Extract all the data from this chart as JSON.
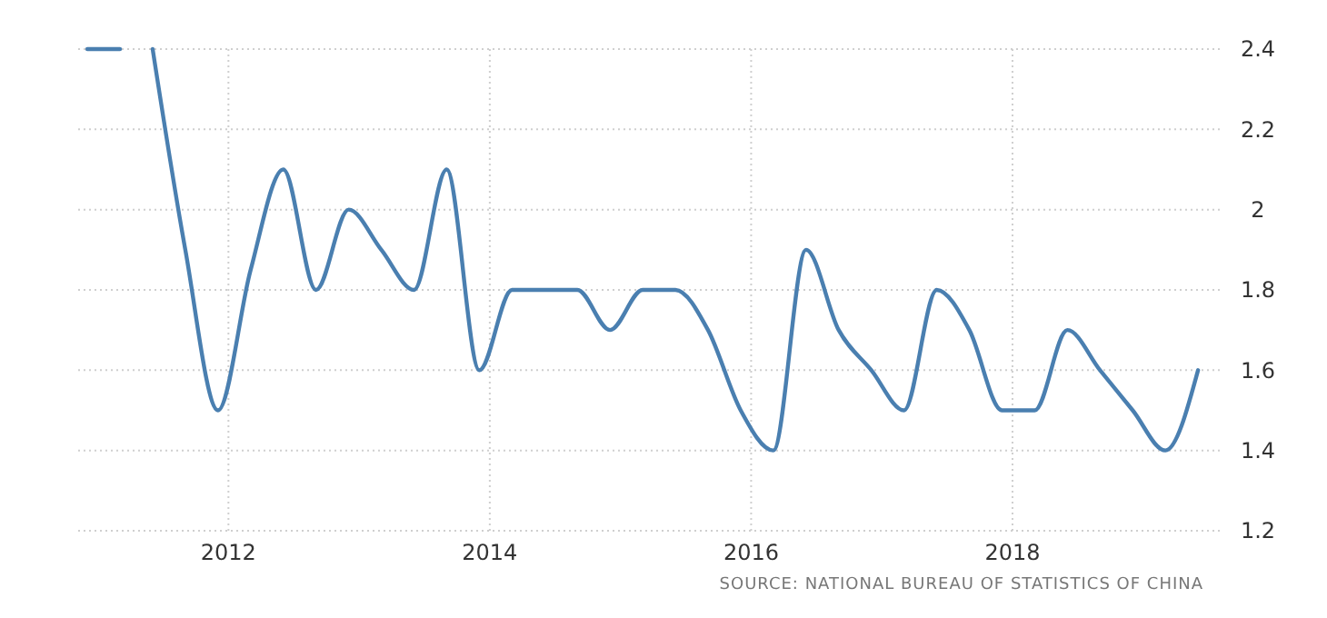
{
  "chart_data": {
    "type": "line",
    "x": [
      2010.92,
      2011.17,
      2011.3,
      2011.42,
      2011.67,
      2011.92,
      2012.17,
      2012.42,
      2012.67,
      2012.92,
      2013.17,
      2013.42,
      2013.67,
      2013.92,
      2014.17,
      2014.42,
      2014.67,
      2014.92,
      2015.17,
      2015.42,
      2015.67,
      2015.92,
      2016.17,
      2016.42,
      2016.67,
      2016.92,
      2017.17,
      2017.42,
      2017.67,
      2017.92,
      2018.17,
      2018.42,
      2018.67,
      2018.92,
      2019.17,
      2019.42
    ],
    "series": [
      {
        "color": "#4a7fb0",
        "values": [
          2.4,
          2.4,
          null,
          2.4,
          1.9,
          1.5,
          1.85,
          2.1,
          1.8,
          2.0,
          1.9,
          1.8,
          2.1,
          1.6,
          1.8,
          1.8,
          1.8,
          1.7,
          1.8,
          1.8,
          1.7,
          1.5,
          1.4,
          1.9,
          1.7,
          1.6,
          1.5,
          1.8,
          1.7,
          1.5,
          1.5,
          1.7,
          1.6,
          1.5,
          1.4,
          1.6
        ]
      }
    ],
    "xlim": [
      2010.85,
      2019.6
    ],
    "xticks": [
      2012,
      2014,
      2016,
      2018
    ],
    "ylim": [
      1.2,
      2.4
    ],
    "yticks": [
      1.2,
      1.4,
      1.6,
      1.8,
      2,
      2.2,
      2.4
    ],
    "grid": true,
    "line_style": "solid",
    "annotations": [
      "SOURCE: NATIONAL BUREAU OF STATISTICS OF CHINA"
    ]
  }
}
